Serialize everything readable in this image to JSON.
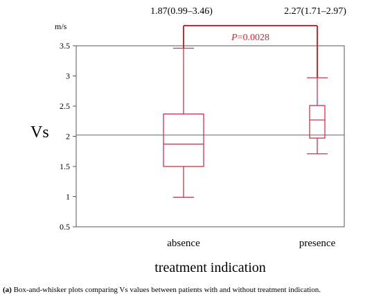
{
  "chart_data": {
    "type": "box",
    "ylabel": "Vs",
    "yunit": "m/s",
    "xlabel": "treatment indication",
    "ylim": [
      0.5,
      3.5
    ],
    "yticks": [
      "0.5",
      "1",
      "1.5",
      "2",
      "2.5",
      "3",
      "3.5"
    ],
    "reference_line": 2.02,
    "groups": [
      {
        "category": "absence",
        "summary": "1.87(0.99–3.46)",
        "min": 0.99,
        "q1": 1.5,
        "median": 1.87,
        "q3": 2.37,
        "max": 3.46
      },
      {
        "category": "presence",
        "summary": "2.27(1.71–2.97)",
        "min": 1.71,
        "q1": 1.97,
        "median": 2.27,
        "q3": 2.51,
        "max": 2.97
      }
    ],
    "comparison": {
      "p_label": "P",
      "p_value": "=0.0028"
    },
    "colors": {
      "box": "#d2304a",
      "bracket": "#e0202e",
      "axis": "#555555",
      "reference": "#666666"
    }
  },
  "caption": {
    "label": "(a)",
    "text": " Box-and-whisker plots comparing Vs values between patients with and without treatment indication."
  }
}
